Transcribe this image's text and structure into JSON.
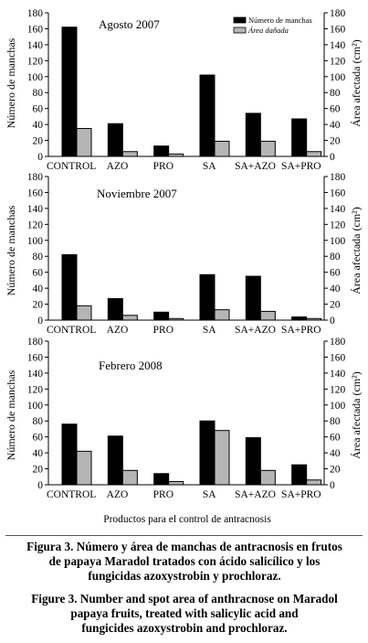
{
  "x_label": "Productos para el control de antracnosis",
  "colors": {
    "manchas": "#000000",
    "area": "#b5b5b5"
  },
  "chart_data": [
    {
      "type": "bar",
      "title": "Agosto 2007",
      "categories": [
        "CONTROL",
        "AZO",
        "PRO",
        "SA",
        "SA+AZO",
        "SA+PRO"
      ],
      "ylabel": "Número de manchas",
      "y2label": "Área afectada (cm²)",
      "ylim": [
        0,
        180
      ],
      "y2lim": [
        0,
        180
      ],
      "yticks": [
        0,
        20,
        40,
        60,
        80,
        100,
        120,
        140,
        160,
        180
      ],
      "legend_position": "top-right",
      "series": [
        {
          "name": "Número de manchas",
          "axis": "left",
          "values": [
            162,
            41,
            13,
            102,
            54,
            47
          ]
        },
        {
          "name": "Área dañada",
          "axis": "right",
          "values": [
            35,
            6,
            3,
            19,
            19,
            6
          ]
        }
      ]
    },
    {
      "type": "bar",
      "title": "Noviembre 2007",
      "categories": [
        "CONTROL",
        "AZO",
        "PRO",
        "SA",
        "SA+AZO",
        "SA+PRO"
      ],
      "ylabel": "Número de manchas",
      "y2label": "Área afectada (cm²)",
      "ylim": [
        0,
        180
      ],
      "y2lim": [
        0,
        180
      ],
      "yticks": [
        0,
        20,
        40,
        60,
        80,
        100,
        120,
        140,
        160,
        180
      ],
      "series": [
        {
          "values": [
            82,
            27,
            10,
            57,
            55,
            4
          ]
        },
        {
          "values": [
            18,
            6,
            2,
            13,
            11,
            2
          ]
        }
      ]
    },
    {
      "type": "bar",
      "title": "Febrero 2008",
      "categories": [
        "CONTROL",
        "AZO",
        "PRO",
        "SA",
        "SA+AZO",
        "SA+PRO"
      ],
      "ylabel": "Número de manchas",
      "y2label": "Área afectada (cm²)",
      "ylim": [
        0,
        180
      ],
      "y2lim": [
        0,
        180
      ],
      "yticks": [
        0,
        20,
        40,
        60,
        80,
        100,
        120,
        140,
        160,
        180
      ],
      "series": [
        {
          "values": [
            76,
            61,
            14,
            80,
            59,
            25
          ]
        },
        {
          "values": [
            42,
            18,
            4,
            68,
            18,
            6
          ]
        }
      ]
    }
  ],
  "caption": {
    "es": [
      "Figura 3. Número y área de manchas de antracnosis en frutos",
      "de papaya Maradol tratados con ácido salicílico y los",
      "fungicidas azoxystrobin y prochloraz."
    ],
    "en": [
      "Figure 3. Number and spot area of anthracnose on Maradol",
      "papaya fruits, treated with salicylic acid and",
      "fungicides azoxystrobin and prochloraz."
    ]
  }
}
